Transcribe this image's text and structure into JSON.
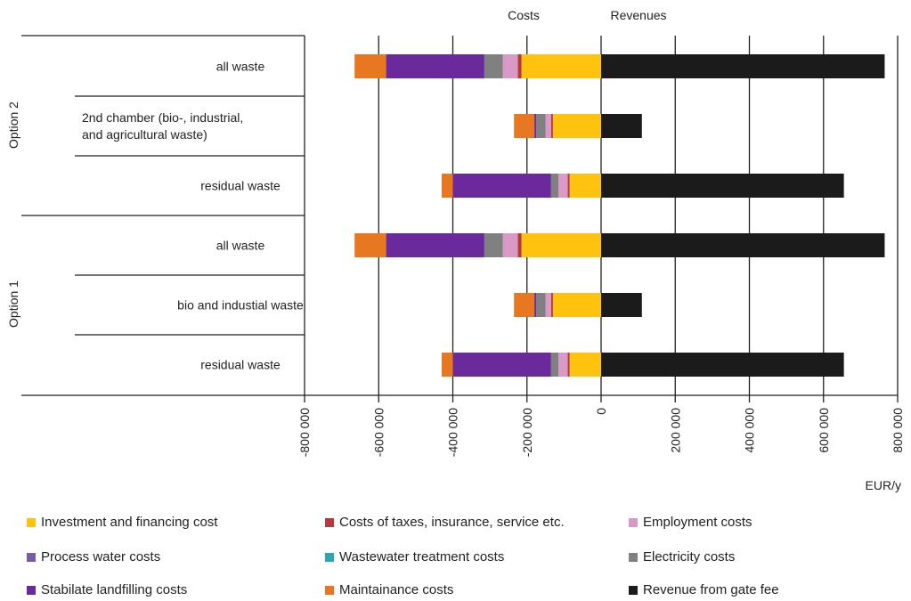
{
  "chart_data": {
    "type": "bar",
    "orientation": "horizontal-stacked",
    "header_left": "Costs",
    "header_right": "Revenues",
    "xlabel": "EUR/y",
    "xlim": [
      -800000,
      800000
    ],
    "xticks": [
      -800000,
      -600000,
      -400000,
      -200000,
      0,
      200000,
      400000,
      600000,
      800000
    ],
    "xtick_labels": [
      "-800 000",
      "-600 000",
      "-400 000",
      "-200 000",
      "0",
      "200 000",
      "400 000",
      "600 000",
      "800 000"
    ],
    "groups": [
      "Option 2",
      "Option 1"
    ],
    "categories": [
      {
        "group": "Option 2",
        "label": [
          "all waste"
        ]
      },
      {
        "group": "Option 2",
        "label": [
          "2nd chamber (bio-, industrial,",
          "and agricultural waste)"
        ]
      },
      {
        "group": "Option 2",
        "label": [
          "residual waste"
        ]
      },
      {
        "group": "Option 1",
        "label": [
          "all waste"
        ]
      },
      {
        "group": "Option 1",
        "label": [
          "bio and industial waste"
        ]
      },
      {
        "group": "Option 1",
        "label": [
          "residual waste"
        ]
      }
    ],
    "series": [
      {
        "name": "Investment and financing cost",
        "color": "#FFC20E",
        "values": [
          -215000,
          -130000,
          -85000,
          -215000,
          -130000,
          -85000
        ]
      },
      {
        "name": "Costs of taxes, insurance, service etc.",
        "color": "#B5393F",
        "values": [
          -10000,
          -5000,
          -5000,
          -10000,
          -5000,
          -5000
        ]
      },
      {
        "name": "Employment costs",
        "color": "#D99AC8",
        "values": [
          -40000,
          -15000,
          -25000,
          -40000,
          -15000,
          -25000
        ]
      },
      {
        "name": "Process water costs",
        "color": "#7A5BA6",
        "values": [
          0,
          0,
          0,
          0,
          0,
          0
        ]
      },
      {
        "name": "Wastewater treatment costs",
        "color": "#2AA7B5",
        "values": [
          0,
          0,
          0,
          0,
          0,
          0
        ]
      },
      {
        "name": "Electricity costs",
        "color": "#808080",
        "values": [
          -50000,
          -25000,
          -20000,
          -50000,
          -25000,
          -20000
        ]
      },
      {
        "name": "Stabilate landfilling costs",
        "color": "#6A2A9C",
        "values": [
          -265000,
          -5000,
          -265000,
          -265000,
          -5000,
          -265000
        ]
      },
      {
        "name": "Maintainance costs",
        "color": "#E87722",
        "values": [
          -85000,
          -55000,
          -30000,
          -85000,
          -55000,
          -30000
        ]
      },
      {
        "name": "Revenue from gate fee",
        "color": "#1B1B1B",
        "values": [
          765000,
          110000,
          655000,
          765000,
          110000,
          655000
        ]
      }
    ],
    "legend_position": "bottom",
    "grid": "vertical lines at ticks"
  }
}
